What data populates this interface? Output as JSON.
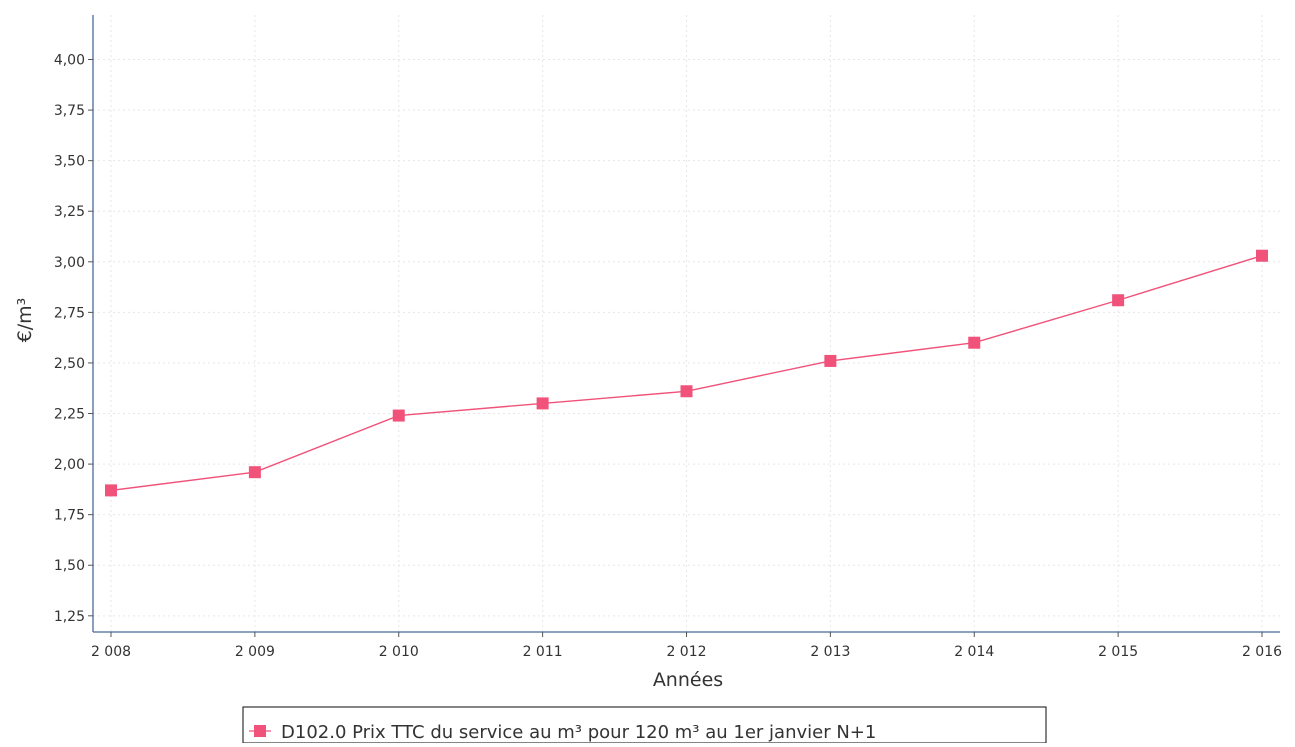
{
  "chart_data": {
    "type": "line",
    "title": "",
    "xlabel": "Années",
    "ylabel": "€/m³",
    "x": [
      "2 008",
      "2 009",
      "2 010",
      "2 011",
      "2 012",
      "2 013",
      "2 014",
      "2 015",
      "2 016"
    ],
    "series": [
      {
        "name": "D102.0 Prix TTC du service au m³ pour 120 m³ au 1er janvier N+1",
        "color": "#f0527a",
        "marker": "square",
        "values": [
          1.87,
          1.96,
          2.24,
          2.3,
          2.36,
          2.51,
          2.6,
          2.81,
          3.03
        ]
      }
    ],
    "y_ticks": [
      "1,25",
      "1,50",
      "1,75",
      "2,00",
      "2,25",
      "2,50",
      "2,75",
      "3,00",
      "3,25",
      "3,50",
      "3,75",
      "4,00"
    ],
    "y_tick_values": [
      1.25,
      1.5,
      1.75,
      2.0,
      2.25,
      2.5,
      2.75,
      3.0,
      3.25,
      3.5,
      3.75,
      4.0
    ],
    "ylim": [
      1.17,
      4.22
    ],
    "grid": true,
    "legend": "bottom-center"
  }
}
